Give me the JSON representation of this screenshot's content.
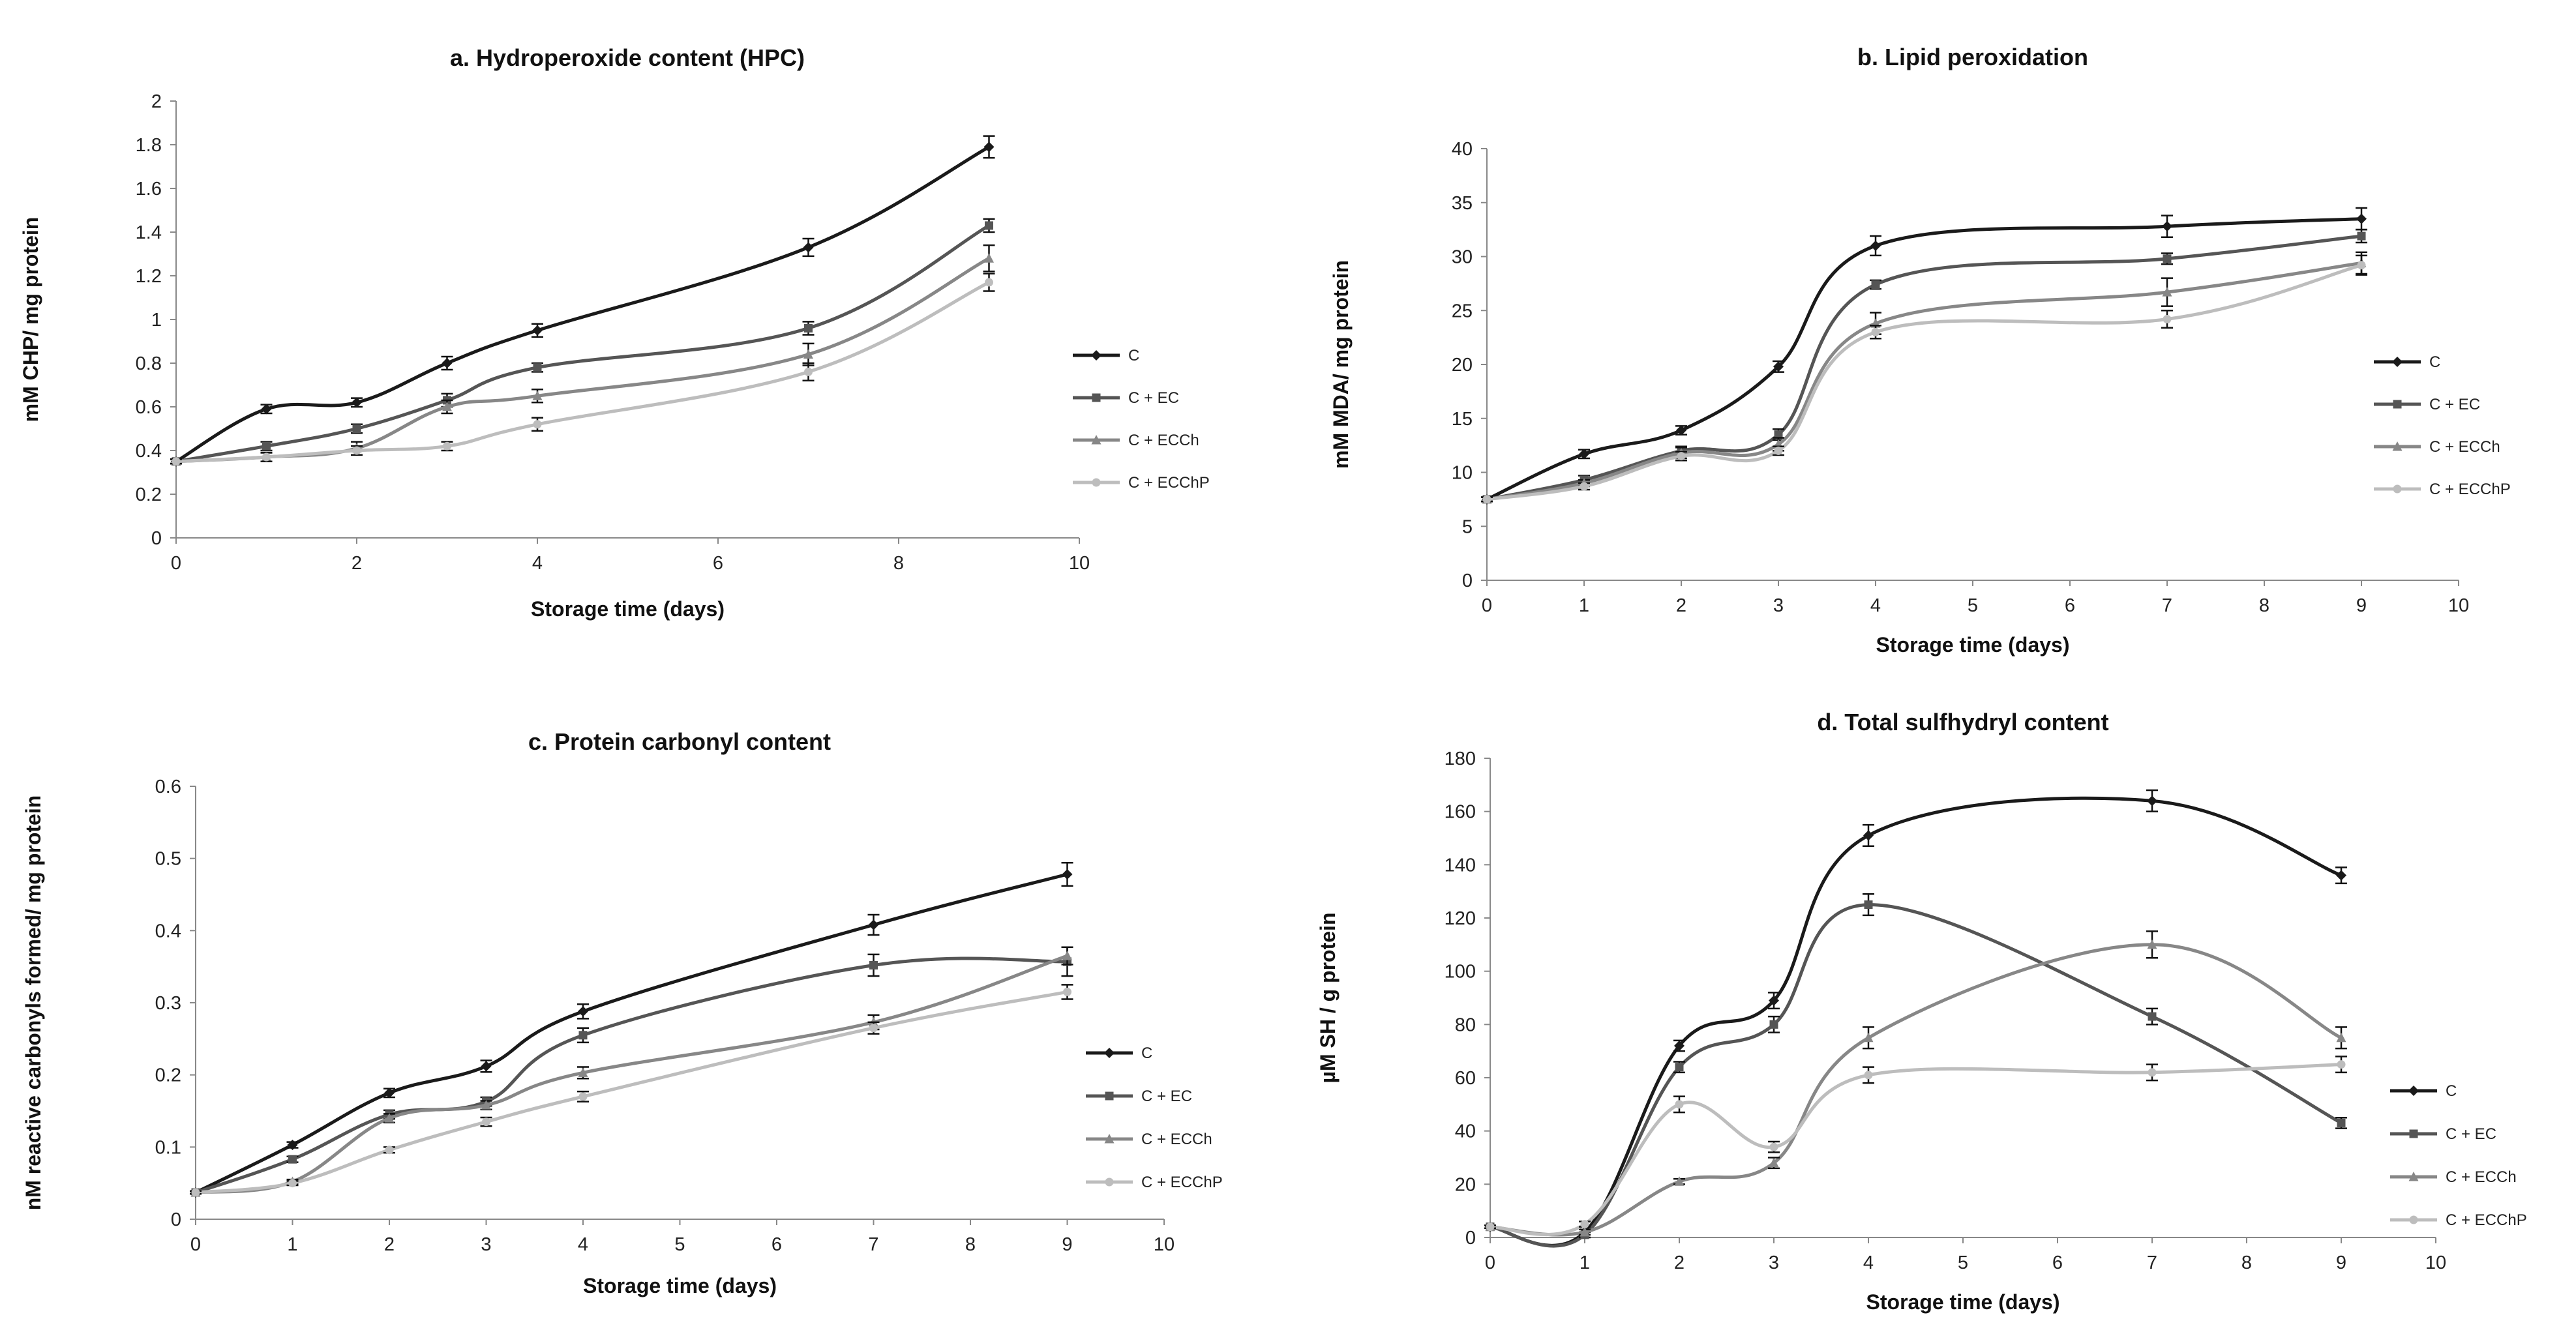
{
  "palette": {
    "C": "#1a1a1a",
    "C + EC": "#555555",
    "C + ECCh": "#878787",
    "C + ECChP": "#bdbdbd"
  },
  "markers": {
    "C": "diamond",
    "C + EC": "square",
    "C + ECCh": "triangle",
    "C + ECChP": "circle"
  },
  "chart_data": [
    {
      "type": "line",
      "title": "a. Hydroperoxide content (HPC)",
      "xlabel": "Storage time (days)",
      "ylabel": "mM CHP/ mg protein",
      "xlim": [
        0,
        10
      ],
      "xticks": [
        0,
        2,
        4,
        6,
        8,
        10
      ],
      "ylim": [
        0,
        2
      ],
      "yticks": [
        0,
        0.2,
        0.4,
        0.6,
        0.8,
        1,
        1.2,
        1.4,
        1.6,
        1.8,
        2
      ],
      "ytick_labels": [
        "0",
        "0.2",
        "0.4",
        "0.6",
        "0.8",
        "1",
        "1.2",
        "1.4",
        "1.6",
        "1.8",
        "2"
      ],
      "grid": false,
      "legend": "right",
      "x": [
        0,
        1,
        2,
        3,
        4,
        7,
        9
      ],
      "series": [
        {
          "name": "C",
          "values": [
            0.35,
            0.59,
            0.62,
            0.8,
            0.95,
            1.33,
            1.79
          ],
          "errors": [
            0.01,
            0.02,
            0.02,
            0.03,
            0.03,
            0.04,
            0.05
          ]
        },
        {
          "name": "C + EC",
          "values": [
            0.35,
            0.42,
            0.5,
            0.63,
            0.78,
            0.96,
            1.43
          ],
          "errors": [
            0.01,
            0.02,
            0.02,
            0.03,
            0.02,
            0.03,
            0.03
          ]
        },
        {
          "name": "C + ECCh",
          "values": [
            0.35,
            0.37,
            0.41,
            0.6,
            0.65,
            0.84,
            1.28
          ],
          "errors": [
            0.01,
            0.02,
            0.03,
            0.03,
            0.03,
            0.05,
            0.06
          ]
        },
        {
          "name": "C + ECChP",
          "values": [
            0.35,
            0.37,
            0.4,
            0.42,
            0.52,
            0.76,
            1.17
          ],
          "errors": [
            0.01,
            0.02,
            0.02,
            0.02,
            0.03,
            0.04,
            0.04
          ]
        }
      ]
    },
    {
      "type": "line",
      "title": "b. Lipid peroxidation",
      "xlabel": "Storage time (days)",
      "ylabel": "mM MDA/ mg protein",
      "xlim": [
        0,
        10
      ],
      "xticks": [
        0,
        1,
        2,
        3,
        4,
        5,
        6,
        7,
        8,
        9,
        10
      ],
      "ylim": [
        0,
        40
      ],
      "yticks": [
        0,
        5,
        10,
        15,
        20,
        25,
        30,
        35,
        40
      ],
      "ytick_labels": [
        "0",
        "5",
        "10",
        "15",
        "20",
        "25",
        "30",
        "35",
        "40"
      ],
      "grid": false,
      "legend": "right",
      "x": [
        0,
        1,
        2,
        3,
        4,
        7,
        9
      ],
      "series": [
        {
          "name": "C",
          "values": [
            7.5,
            11.7,
            13.9,
            19.8,
            31.0,
            32.8,
            33.5
          ],
          "errors": [
            0.2,
            0.4,
            0.4,
            0.5,
            0.9,
            1.0,
            1.0
          ]
        },
        {
          "name": "C + EC",
          "values": [
            7.5,
            9.3,
            12.0,
            13.5,
            27.4,
            29.8,
            31.9
          ],
          "errors": [
            0.2,
            0.4,
            0.4,
            0.5,
            0.4,
            0.5,
            0.6
          ]
        },
        {
          "name": "C + ECCh",
          "values": [
            7.5,
            9.0,
            11.8,
            12.6,
            23.8,
            26.7,
            29.4
          ],
          "errors": [
            0.2,
            0.3,
            0.5,
            0.6,
            1.0,
            1.3,
            1.0
          ]
        },
        {
          "name": "C + ECChP",
          "values": [
            7.5,
            8.7,
            11.5,
            12.0,
            23.0,
            24.2,
            29.2
          ],
          "errors": [
            0.2,
            0.3,
            0.4,
            0.4,
            0.6,
            0.8,
            0.9
          ]
        }
      ]
    },
    {
      "type": "line",
      "title": "c. Protein carbonyl content",
      "xlabel": "Storage time (days)",
      "ylabel": "nM reactive carbonyls formed/ mg protein",
      "xlim": [
        0,
        10
      ],
      "xticks": [
        0,
        1,
        2,
        3,
        4,
        5,
        6,
        7,
        8,
        9,
        10
      ],
      "ylim": [
        0,
        0.6
      ],
      "yticks": [
        0,
        0.1,
        0.2,
        0.3,
        0.4,
        0.5,
        0.6
      ],
      "ytick_labels": [
        "0",
        "0.1",
        "0.2",
        "0.3",
        "0.4",
        "0.5",
        "0.6"
      ],
      "grid": false,
      "legend": "right",
      "x": [
        0,
        1,
        2,
        3,
        4,
        7,
        9
      ],
      "series": [
        {
          "name": "C",
          "values": [
            0.037,
            0.103,
            0.175,
            0.212,
            0.288,
            0.408,
            0.478
          ],
          "errors": [
            0.002,
            0.004,
            0.006,
            0.008,
            0.01,
            0.014,
            0.016
          ]
        },
        {
          "name": "C + EC",
          "values": [
            0.037,
            0.083,
            0.145,
            0.163,
            0.255,
            0.352,
            0.357
          ],
          "errors": [
            0.002,
            0.004,
            0.006,
            0.006,
            0.01,
            0.015,
            0.02
          ]
        },
        {
          "name": "C + ECCh",
          "values": [
            0.037,
            0.052,
            0.14,
            0.158,
            0.203,
            0.273,
            0.365
          ],
          "errors": [
            0.002,
            0.003,
            0.006,
            0.006,
            0.008,
            0.01,
            0.012
          ]
        },
        {
          "name": "C + ECChP",
          "values": [
            0.037,
            0.05,
            0.096,
            0.135,
            0.17,
            0.265,
            0.315
          ],
          "errors": [
            0.002,
            0.003,
            0.004,
            0.006,
            0.007,
            0.008,
            0.01
          ]
        }
      ]
    },
    {
      "type": "line",
      "title": "d. Total sulfhydryl content",
      "xlabel": "Storage time (days)",
      "ylabel": "µM SH / g protein",
      "xlim": [
        0,
        10
      ],
      "xticks": [
        0,
        1,
        2,
        3,
        4,
        5,
        6,
        7,
        8,
        9,
        10
      ],
      "ylim": [
        0,
        180
      ],
      "yticks": [
        0,
        20,
        40,
        60,
        80,
        100,
        120,
        140,
        160,
        180
      ],
      "ytick_labels": [
        "0",
        "20",
        "40",
        "60",
        "80",
        "100",
        "120",
        "140",
        "160",
        "180"
      ],
      "grid": false,
      "legend": "right",
      "x": [
        0,
        1,
        2,
        3,
        4,
        7,
        9
      ],
      "series": [
        {
          "name": "C",
          "values": [
            4,
            2,
            72,
            89,
            151,
            164,
            136
          ],
          "errors": [
            0.5,
            1,
            2,
            3,
            4,
            4,
            3
          ]
        },
        {
          "name": "C + EC",
          "values": [
            4,
            1,
            64,
            80,
            125,
            83,
            43
          ],
          "errors": [
            0.5,
            1,
            2,
            3,
            4,
            3,
            2
          ]
        },
        {
          "name": "C + ECCh",
          "values": [
            4,
            2,
            21,
            28,
            75,
            110,
            75
          ],
          "errors": [
            0.5,
            1,
            1,
            2,
            4,
            5,
            4
          ]
        },
        {
          "name": "C + ECChP",
          "values": [
            4,
            5,
            50,
            34,
            61,
            62,
            65
          ],
          "errors": [
            0.5,
            1,
            3,
            2,
            3,
            3,
            3
          ]
        }
      ]
    }
  ]
}
